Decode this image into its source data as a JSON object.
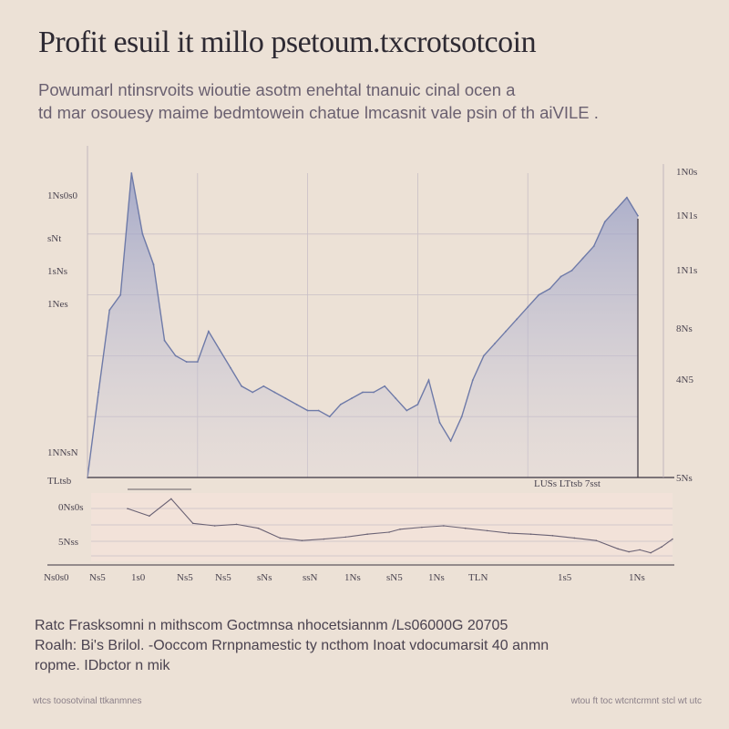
{
  "title": "Profit esuil it millo psetoum.txcrotsotcoin",
  "subtitle_lines": [
    "Powumarl ntinsrvoits wioutie asotm enehtal tnanuic cinal ocen a",
    "td mar osouesy maime bedmtowein chatue lmcasnit vale psin of th aiVILE ."
  ],
  "description_lines": [
    "Ratc Frasksomni n mithscom Goctmnsa nhocetsiannm /Ls06000G 20705",
    "Roalh: Bi's Brilol. -Ooccom Rrnpnamestic ty ncthom Inoat vdocumarsit 40 anmn",
    "ropme. IDbctor n mik"
  ],
  "footer_left": "wtcs toosotvinal ttkanmnes",
  "footer_right": "wtou ft toc wtcntcrmnt stcl wt utc",
  "colors": {
    "line": "#6e7aa8",
    "fill": "#a7aed0",
    "axis": "#3a3440",
    "grid": "#c9bfc6",
    "lower_band": "#f2e2d9"
  },
  "chart_data": [
    {
      "type": "area",
      "title": "",
      "left_ticks": [
        "1Ns0s0",
        "sNt",
        "1sNs",
        "1Nes",
        "1NNsN",
        "TLtsb"
      ],
      "right_ticks": [
        "1N0s",
        "1N1s",
        "1N1s",
        "8Ns",
        "4N5",
        "5Ns"
      ],
      "baseline_label": "LUSs LTtsb 7sst",
      "x": [
        0,
        2,
        4,
        6,
        8,
        10,
        12,
        14,
        16,
        18,
        20,
        22,
        24,
        26,
        28,
        30,
        32,
        34,
        36,
        38,
        40,
        42,
        44,
        46,
        48,
        50,
        52,
        54,
        56,
        58,
        60,
        62,
        64,
        66,
        68,
        70,
        72,
        74,
        76,
        78,
        80,
        82,
        84,
        86,
        88,
        90,
        92,
        94,
        96,
        98,
        100
      ],
      "y": [
        0,
        28,
        55,
        60,
        100,
        80,
        70,
        45,
        40,
        38,
        38,
        48,
        42,
        36,
        30,
        28,
        30,
        28,
        26,
        24,
        22,
        22,
        20,
        24,
        26,
        28,
        28,
        30,
        26,
        22,
        24,
        32,
        18,
        12,
        20,
        32,
        40,
        44,
        48,
        52,
        56,
        60,
        62,
        66,
        68,
        72,
        76,
        84,
        88,
        92,
        86
      ],
      "ylim": [
        0,
        100
      ],
      "grid": true
    },
    {
      "type": "line",
      "title": "",
      "left_ticks": [
        "0Ns0s",
        "5Nss"
      ],
      "x_ticks": [
        "Ns0s0",
        "Ns5",
        "1s0",
        "Ns5",
        "Ns5",
        "sNs",
        "ssN",
        "1Ns",
        "sN5",
        "1Ns",
        "TLN",
        "1s5",
        "1Ns"
      ],
      "x": [
        0,
        4,
        8,
        12,
        16,
        20,
        24,
        28,
        32,
        36,
        40,
        44,
        48,
        50,
        54,
        58,
        62,
        66,
        70,
        74,
        78,
        82,
        86,
        90,
        92,
        94,
        96,
        98,
        100
      ],
      "y": [
        70,
        55,
        90,
        40,
        35,
        38,
        30,
        10,
        5,
        8,
        12,
        18,
        22,
        28,
        32,
        35,
        30,
        25,
        20,
        18,
        15,
        10,
        5,
        -12,
        -18,
        -14,
        -20,
        -8,
        8
      ],
      "ylim": [
        -30,
        100
      ],
      "grid": true
    }
  ]
}
